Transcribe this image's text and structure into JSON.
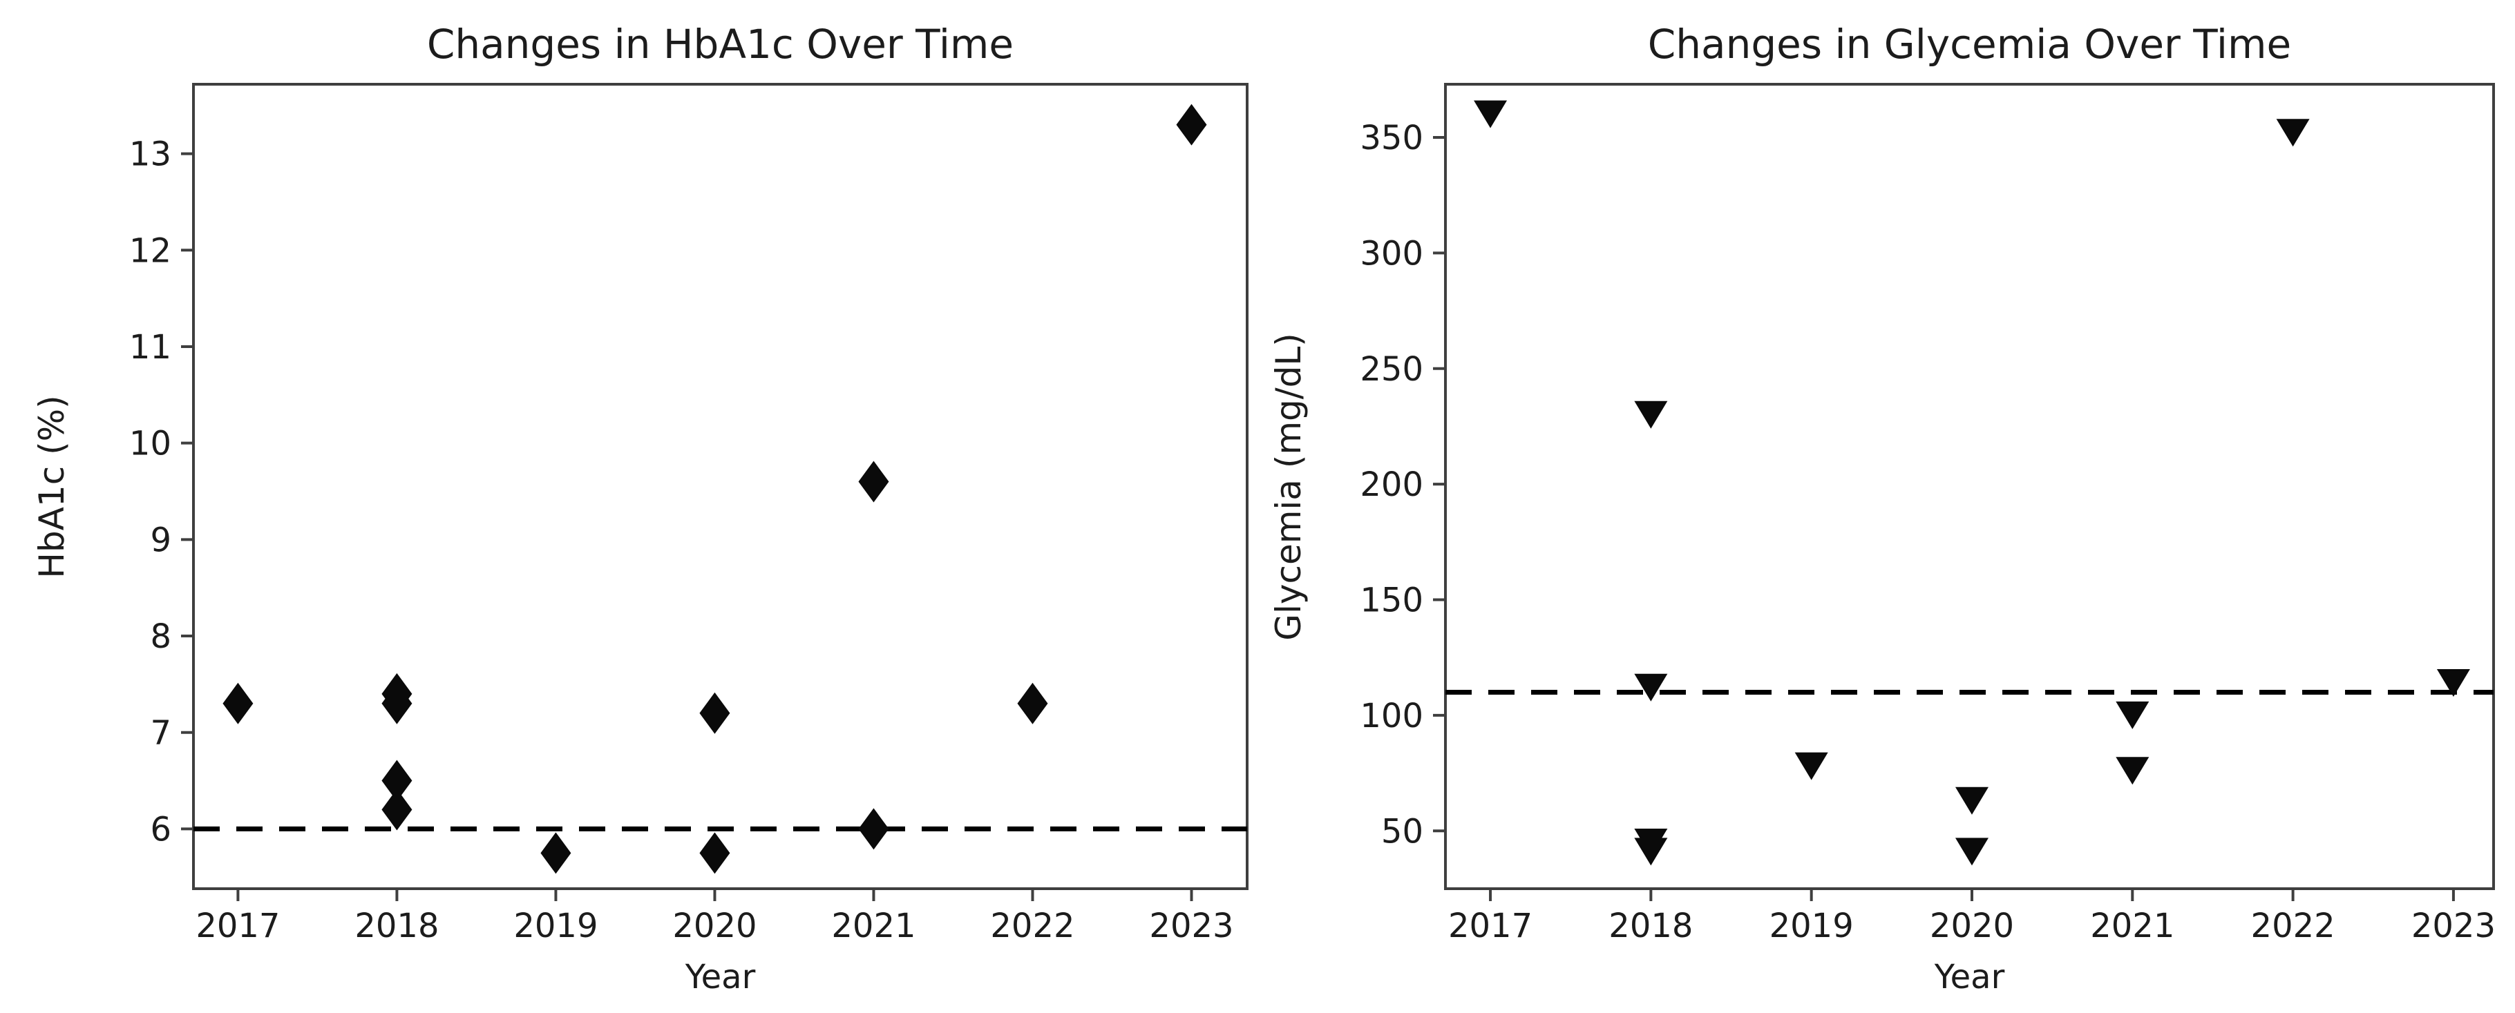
{
  "figure": {
    "background": "#ffffff",
    "text_color": "#1c1c1c",
    "spine_color": "#3f3f3f",
    "marker_color": "#0a0a0a",
    "ref_line_color": "#000000"
  },
  "chart_data": [
    {
      "type": "scatter",
      "title": "Changes in HbA1c Over Time",
      "xlabel": "Year",
      "ylabel": "HbA1c (%)",
      "marker": "diamond",
      "marker_color": "#0a0a0a",
      "grid": false,
      "legend": null,
      "x_ticks": [
        2017,
        2018,
        2019,
        2020,
        2021,
        2022,
        2023
      ],
      "y_ticks": [
        6,
        7,
        8,
        9,
        10,
        11,
        12,
        13
      ],
      "xlim": [
        2016.72,
        2023.35
      ],
      "ylim": [
        5.38,
        13.72
      ],
      "ref_line": {
        "y": 6.0,
        "style": "dashed",
        "color": "#000000"
      },
      "points": [
        {
          "x": 2017,
          "y": 7.3
        },
        {
          "x": 2018,
          "y": 7.4
        },
        {
          "x": 2018,
          "y": 7.3
        },
        {
          "x": 2018,
          "y": 6.5
        },
        {
          "x": 2018,
          "y": 6.2
        },
        {
          "x": 2019,
          "y": 5.75
        },
        {
          "x": 2020,
          "y": 7.2
        },
        {
          "x": 2020,
          "y": 5.75
        },
        {
          "x": 2021,
          "y": 9.6
        },
        {
          "x": 2021,
          "y": 6.0
        },
        {
          "x": 2022,
          "y": 7.3
        },
        {
          "x": 2023,
          "y": 13.3
        }
      ]
    },
    {
      "type": "scatter",
      "title": "Changes in Glycemia Over Time",
      "xlabel": "Year",
      "ylabel": "Glycemia (mg/dL)",
      "marker": "triangle-down",
      "marker_color": "#0a0a0a",
      "grid": false,
      "legend": null,
      "x_ticks": [
        2017,
        2018,
        2019,
        2020,
        2021,
        2022,
        2023
      ],
      "y_ticks": [
        50,
        100,
        150,
        200,
        250,
        300,
        350
      ],
      "xlim": [
        2016.72,
        2023.25
      ],
      "ylim": [
        25,
        373
      ],
      "ref_line": {
        "y": 110,
        "style": "dashed",
        "color": "#000000"
      },
      "points": [
        {
          "x": 2017,
          "y": 360
        },
        {
          "x": 2018,
          "y": 230
        },
        {
          "x": 2018,
          "y": 112
        },
        {
          "x": 2018,
          "y": 45
        },
        {
          "x": 2018,
          "y": 41
        },
        {
          "x": 2019,
          "y": 78
        },
        {
          "x": 2020,
          "y": 63
        },
        {
          "x": 2020,
          "y": 41
        },
        {
          "x": 2021,
          "y": 100
        },
        {
          "x": 2021,
          "y": 76
        },
        {
          "x": 2022,
          "y": 352
        },
        {
          "x": 2023,
          "y": 114
        }
      ]
    }
  ]
}
